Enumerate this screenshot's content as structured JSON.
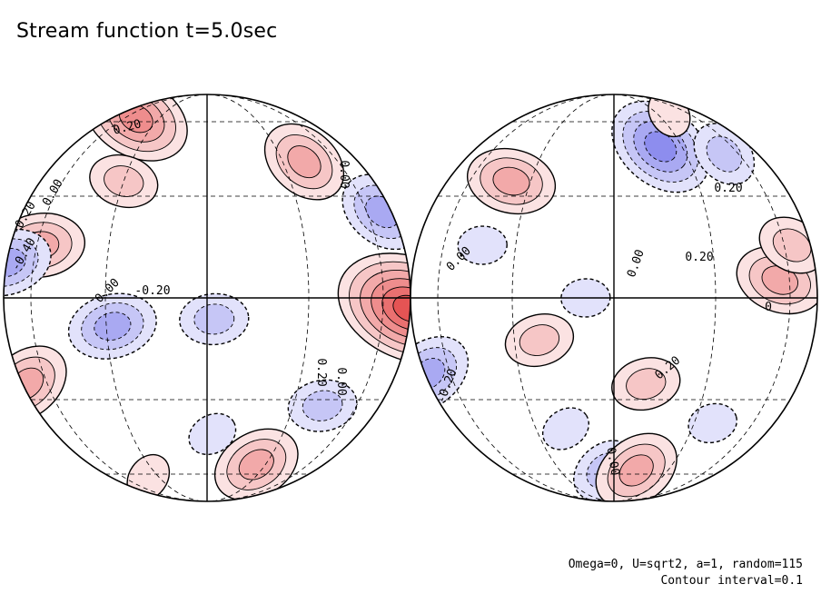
{
  "title": "Stream function t=5.0sec",
  "footnote_params": "Omega=0, U=sqrt2, a=1, random=115",
  "footnote_interval": "Contour interval=0.1",
  "colors": {
    "positive": "#e03a3a",
    "negative": "#3a3ae0",
    "background": "#ffffff"
  },
  "chart_data": {
    "type": "heatmap",
    "title": "Stream function t=5.0sec",
    "projection": "orthographic, two hemispheres",
    "contour_interval": 0.1,
    "negative_contours": "dashed",
    "hemispheres": [
      {
        "id": "left",
        "contour_labels": [
          "0.20",
          "0.00",
          "-0.20",
          "-0.40",
          "0.00",
          "-0.20",
          "0.00",
          "0.20",
          "0.00"
        ],
        "extrema": [
          {
            "sign": "+",
            "lat": -3,
            "lon": 85,
            "strength": 6
          },
          {
            "sign": "+",
            "lat": 62,
            "lon": -48,
            "strength": 4
          },
          {
            "sign": "+",
            "lat": 42,
            "lon": 40,
            "strength": 3
          },
          {
            "sign": "+",
            "lat": 15,
            "lon": -58,
            "strength": 3
          },
          {
            "sign": "+",
            "lat": 35,
            "lon": -30,
            "strength": 2
          },
          {
            "sign": "+",
            "lat": -25,
            "lon": -78,
            "strength": 3
          },
          {
            "sign": "+",
            "lat": -55,
            "lon": 25,
            "strength": 3
          },
          {
            "sign": "+",
            "lat": -62,
            "lon": -38,
            "strength": 1
          },
          {
            "sign": "-",
            "lat": 25,
            "lon": 72,
            "strength": 3
          },
          {
            "sign": "-",
            "lat": 10,
            "lon": -85,
            "strength": 3
          },
          {
            "sign": "-",
            "lat": -8,
            "lon": -28,
            "strength": 3
          },
          {
            "sign": "-",
            "lat": -6,
            "lon": 2,
            "strength": 2
          },
          {
            "sign": "-",
            "lat": -32,
            "lon": 42,
            "strength": 2
          },
          {
            "sign": "-",
            "lat": -42,
            "lon": 2,
            "strength": 1
          }
        ]
      },
      {
        "id": "right",
        "contour_labels": [
          "0.20",
          "0.00",
          "0.00",
          "0.20",
          "0",
          "0.20",
          "-0.20",
          "0.00"
        ],
        "extrema": [
          {
            "sign": "-",
            "lat": 48,
            "lon": 20,
            "strength": 4
          },
          {
            "sign": "-",
            "lat": 45,
            "lon": 50,
            "strength": 2
          },
          {
            "sign": "-",
            "lat": -22,
            "lon": -80,
            "strength": 3
          },
          {
            "sign": "-",
            "lat": 0,
            "lon": -8,
            "strength": 1
          },
          {
            "sign": "-",
            "lat": 15,
            "lon": -42,
            "strength": 1
          },
          {
            "sign": "-",
            "lat": -58,
            "lon": -5,
            "strength": 2
          },
          {
            "sign": "-",
            "lat": -40,
            "lon": -18,
            "strength": 1
          },
          {
            "sign": "-",
            "lat": -38,
            "lon": 38,
            "strength": 1
          },
          {
            "sign": "+",
            "lat": 35,
            "lon": -38,
            "strength": 3
          },
          {
            "sign": "+",
            "lat": -12,
            "lon": -22,
            "strength": 2
          },
          {
            "sign": "+",
            "lat": 5,
            "lon": 55,
            "strength": 3
          },
          {
            "sign": "+",
            "lat": 15,
            "lon": 65,
            "strength": 2
          },
          {
            "sign": "+",
            "lat": -25,
            "lon": 10,
            "strength": 2
          },
          {
            "sign": "+",
            "lat": -58,
            "lon": 12,
            "strength": 3
          },
          {
            "sign": "+",
            "lat": 65,
            "lon": 40,
            "strength": 1
          }
        ]
      }
    ]
  }
}
